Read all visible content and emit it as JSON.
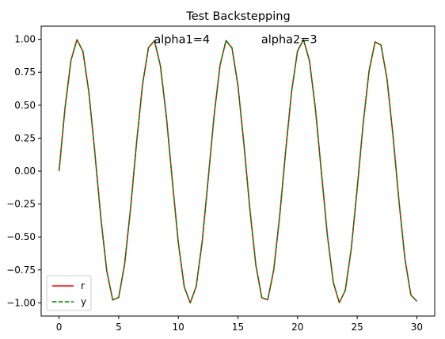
{
  "chart_data": {
    "type": "line",
    "title": "Test Backstepping",
    "xlabel": "",
    "ylabel": "",
    "xlim": [
      -1.5,
      31.5
    ],
    "ylim": [
      -1.1,
      1.1
    ],
    "xticks": [
      0,
      5,
      10,
      15,
      20,
      25,
      30
    ],
    "yticks": [
      -1.0,
      -0.75,
      -0.5,
      -0.25,
      0.0,
      0.25,
      0.5,
      0.75,
      1.0
    ],
    "xtick_labels": [
      "0",
      "5",
      "10",
      "15",
      "20",
      "25",
      "30"
    ],
    "ytick_labels": [
      "−1.00",
      "−0.75",
      "−0.50",
      "−0.25",
      "0.00",
      "0.25",
      "0.50",
      "0.75",
      "1.00"
    ],
    "grid": false,
    "legend_position": "lower-left",
    "annotations": [
      {
        "text": "alpha1=4",
        "x": 10.3,
        "y": 1.0
      },
      {
        "text": "alpha2=3",
        "x": 19.3,
        "y": 1.0
      }
    ],
    "series": [
      {
        "name": "r",
        "color": "#ff0000",
        "linestyle": "solid",
        "x": [
          0.0,
          0.5,
          1.0,
          1.5,
          2.0,
          2.5,
          3.0,
          3.5,
          4.0,
          4.5,
          5.0,
          5.5,
          6.0,
          6.5,
          7.0,
          7.5,
          8.0,
          8.5,
          9.0,
          9.5,
          10.0,
          10.5,
          11.0,
          11.5,
          12.0,
          12.5,
          13.0,
          13.5,
          14.0,
          14.5,
          15.0,
          15.5,
          16.0,
          16.5,
          17.0,
          17.5,
          18.0,
          18.5,
          19.0,
          19.5,
          20.0,
          20.5,
          21.0,
          21.5,
          22.0,
          22.5,
          23.0,
          23.5,
          24.0,
          24.5,
          25.0,
          25.5,
          26.0,
          26.5,
          27.0,
          27.5,
          28.0,
          28.5,
          29.0,
          29.5,
          30.0
        ],
        "y": [
          0.0,
          0.479,
          0.841,
          0.997,
          0.909,
          0.598,
          0.141,
          -0.351,
          -0.757,
          -0.978,
          -0.959,
          -0.706,
          -0.279,
          0.215,
          0.657,
          0.938,
          0.989,
          0.798,
          0.412,
          -0.075,
          -0.544,
          -0.88,
          -1.0,
          -0.875,
          -0.537,
          -0.066,
          0.42,
          0.804,
          0.991,
          0.935,
          0.65,
          0.206,
          -0.288,
          -0.712,
          -0.961,
          -0.976,
          -0.751,
          -0.342,
          0.15,
          0.605,
          0.913,
          0.997,
          0.837,
          0.471,
          -0.009,
          -0.487,
          -0.846,
          -0.998,
          -0.906,
          -0.591,
          -0.132,
          0.359,
          0.763,
          0.98,
          0.956,
          0.7,
          0.271,
          -0.224,
          -0.664,
          -0.94,
          -0.988
        ]
      },
      {
        "name": "y",
        "color": "#008000",
        "linestyle": "dashed",
        "x": [
          0.0,
          0.5,
          1.0,
          1.5,
          2.0,
          2.5,
          3.0,
          3.5,
          4.0,
          4.5,
          5.0,
          5.5,
          6.0,
          6.5,
          7.0,
          7.5,
          8.0,
          8.5,
          9.0,
          9.5,
          10.0,
          10.5,
          11.0,
          11.5,
          12.0,
          12.5,
          13.0,
          13.5,
          14.0,
          14.5,
          15.0,
          15.5,
          16.0,
          16.5,
          17.0,
          17.5,
          18.0,
          18.5,
          19.0,
          19.5,
          20.0,
          20.5,
          21.0,
          21.5,
          22.0,
          22.5,
          23.0,
          23.5,
          24.0,
          24.5,
          25.0,
          25.5,
          26.0,
          26.5,
          27.0,
          27.5,
          28.0,
          28.5,
          29.0,
          29.5,
          30.0
        ],
        "y": [
          0.0,
          0.479,
          0.841,
          0.997,
          0.909,
          0.598,
          0.141,
          -0.351,
          -0.757,
          -0.978,
          -0.959,
          -0.706,
          -0.279,
          0.215,
          0.657,
          0.938,
          0.989,
          0.798,
          0.412,
          -0.075,
          -0.544,
          -0.88,
          -1.0,
          -0.875,
          -0.537,
          -0.066,
          0.42,
          0.804,
          0.991,
          0.935,
          0.65,
          0.206,
          -0.288,
          -0.712,
          -0.961,
          -0.976,
          -0.751,
          -0.342,
          0.15,
          0.605,
          0.913,
          0.997,
          0.837,
          0.471,
          -0.009,
          -0.487,
          -0.846,
          -0.998,
          -0.906,
          -0.591,
          -0.132,
          0.359,
          0.763,
          0.98,
          0.956,
          0.7,
          0.271,
          -0.224,
          -0.664,
          -0.94,
          -0.988
        ]
      }
    ]
  }
}
